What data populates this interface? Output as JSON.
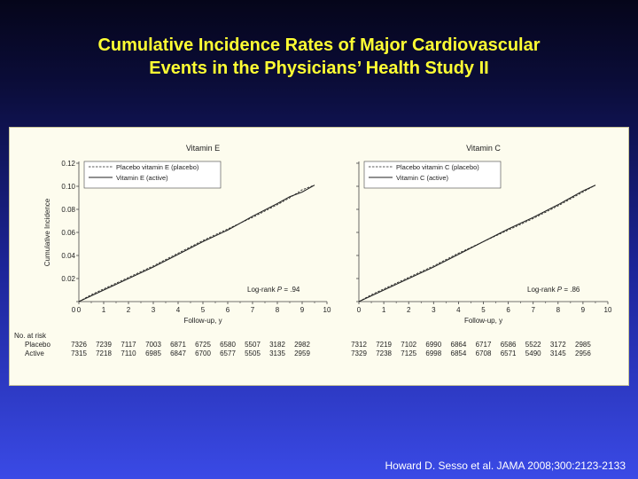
{
  "slide": {
    "title_line1": "Cumulative Incidence Rates of Major Cardiovascular",
    "title_line2": "Events in the Physicians’ Health Study II",
    "citation": "Howard D. Sesso et al. JAMA 2008;300:2123-2133",
    "title_color": "#ffff33"
  },
  "chart_data": [
    {
      "type": "line",
      "title": "Vitamin E",
      "xlabel": "Follow-up, y",
      "ylabel": "Cumulative Incidence",
      "xlim": [
        0,
        10
      ],
      "ylim": [
        0,
        0.12
      ],
      "xticks": [
        "0",
        "1",
        "2",
        "3",
        "4",
        "5",
        "6",
        "7",
        "8",
        "9",
        "10"
      ],
      "yticks": [
        "0",
        "0.02",
        "0.04",
        "0.06",
        "0.08",
        "0.10",
        "0.12"
      ],
      "legend_position": "top-left",
      "annotation": {
        "prefix": "Log-rank ",
        "p": "P",
        "suffix": " = .94"
      },
      "series": [
        {
          "name": "Placebo vitamin E (placebo)",
          "style": "dashed",
          "x": [
            0,
            0.5,
            1,
            2,
            3,
            4,
            5,
            6,
            7,
            8,
            8.5,
            9,
            9.5
          ],
          "y": [
            0,
            0.006,
            0.011,
            0.021,
            0.031,
            0.042,
            0.053,
            0.063,
            0.073,
            0.084,
            0.09,
            0.097,
            0.101
          ]
        },
        {
          "name": "Vitamin E (active)",
          "style": "solid",
          "x": [
            0,
            0.5,
            1,
            2,
            3,
            4,
            5,
            6,
            7,
            8,
            8.5,
            9,
            9.5
          ],
          "y": [
            0,
            0.005,
            0.01,
            0.02,
            0.03,
            0.041,
            0.052,
            0.062,
            0.074,
            0.085,
            0.091,
            0.095,
            0.101
          ]
        }
      ],
      "at_risk": {
        "header": "No. at risk",
        "rows": [
          {
            "label": "Placebo",
            "values": [
              "7326",
              "7239",
              "7117",
              "7003",
              "6871",
              "6725",
              "6580",
              "5507",
              "3182",
              "2982"
            ]
          },
          {
            "label": "Active",
            "values": [
              "7315",
              "7218",
              "7110",
              "6985",
              "6847",
              "6700",
              "6577",
              "5505",
              "3135",
              "2959"
            ]
          }
        ]
      }
    },
    {
      "type": "line",
      "title": "Vitamin C",
      "xlabel": "Follow-up, y",
      "ylabel": "",
      "xlim": [
        0,
        10
      ],
      "ylim": [
        0,
        0.12
      ],
      "xticks": [
        "0",
        "1",
        "2",
        "3",
        "4",
        "5",
        "6",
        "7",
        "8",
        "9",
        "10"
      ],
      "yticks": [],
      "legend_position": "top-left",
      "annotation": {
        "prefix": "Log-rank ",
        "p": "P",
        "suffix": " = .86"
      },
      "series": [
        {
          "name": "Placebo vitamin C (placebo)",
          "style": "dashed",
          "x": [
            0,
            0.5,
            1,
            2,
            3,
            4,
            5,
            6,
            7,
            8,
            8.5,
            9,
            9.5
          ],
          "y": [
            0,
            0.006,
            0.011,
            0.021,
            0.031,
            0.042,
            0.052,
            0.062,
            0.072,
            0.083,
            0.089,
            0.095,
            0.101
          ]
        },
        {
          "name": "Vitamin C (active)",
          "style": "solid",
          "x": [
            0,
            0.5,
            1,
            2,
            3,
            4,
            5,
            6,
            7,
            8,
            8.5,
            9,
            9.5
          ],
          "y": [
            0,
            0.005,
            0.01,
            0.02,
            0.03,
            0.041,
            0.052,
            0.063,
            0.073,
            0.084,
            0.09,
            0.096,
            0.101
          ]
        }
      ],
      "at_risk": {
        "header": "",
        "rows": [
          {
            "label": "",
            "values": [
              "7312",
              "7219",
              "7102",
              "6990",
              "6864",
              "6717",
              "6586",
              "5522",
              "3172",
              "2985"
            ]
          },
          {
            "label": "",
            "values": [
              "7329",
              "7238",
              "7125",
              "6998",
              "6854",
              "6708",
              "6571",
              "5490",
              "3145",
              "2956"
            ]
          }
        ]
      }
    }
  ]
}
